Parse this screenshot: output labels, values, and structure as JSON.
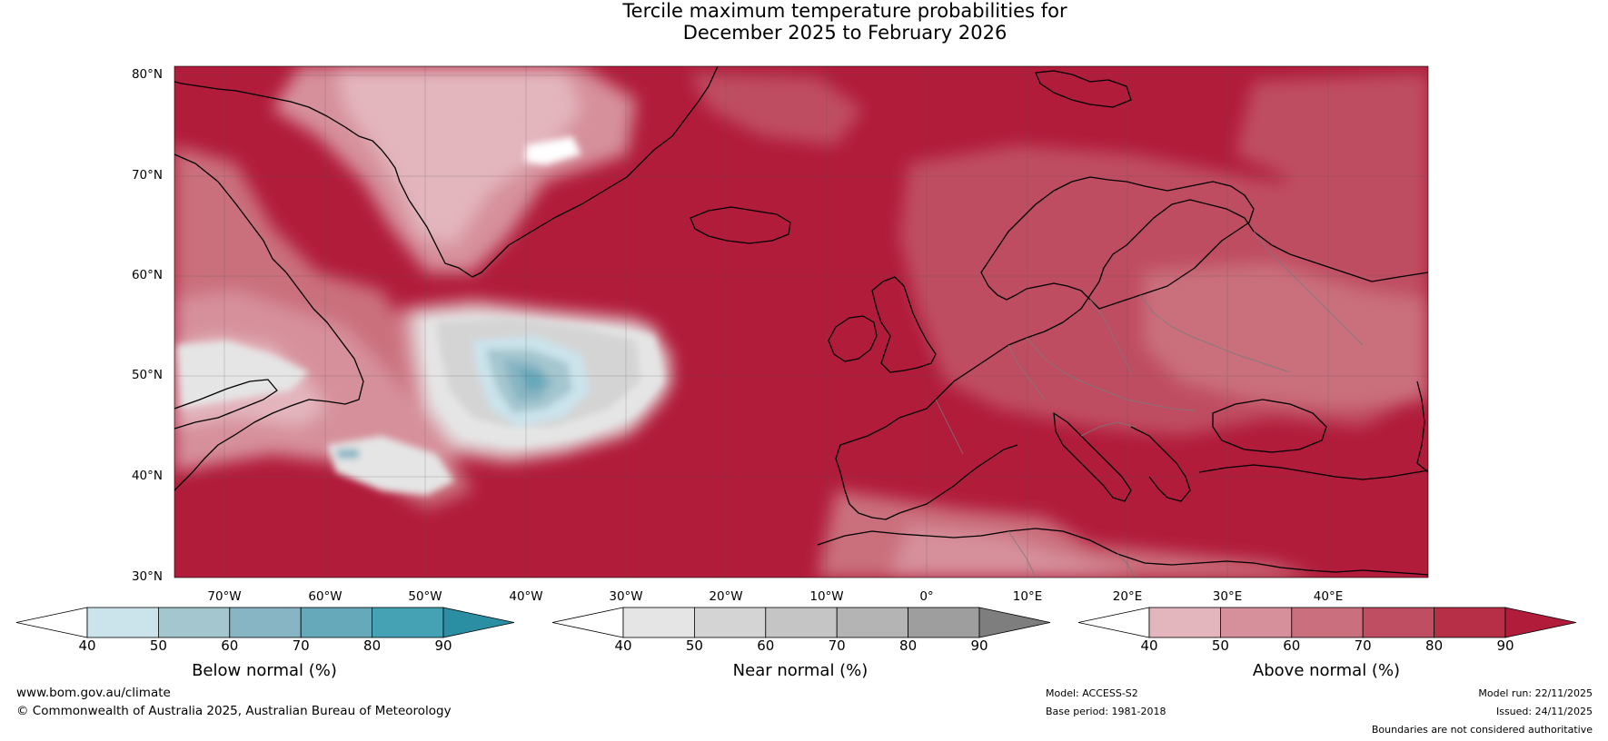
{
  "title_line1": "Tercile maximum temperature probabilities for",
  "title_line2": "December 2025 to February 2026",
  "map": {
    "lat_labels": [
      "80°N",
      "70°N",
      "60°N",
      "50°N",
      "40°N",
      "30°N"
    ],
    "lon_labels": [
      "70°W",
      "60°W",
      "50°W",
      "40°W",
      "30°W",
      "20°W",
      "10°W",
      "0°",
      "10°E",
      "20°E",
      "30°E",
      "40°E"
    ],
    "extent": {
      "lon_min": -75,
      "lon_max": 50,
      "lat_min": 30,
      "lat_max": 81
    }
  },
  "colorbars": [
    {
      "label": "Below normal (%)",
      "ticks": [
        "40",
        "50",
        "60",
        "70",
        "80",
        "90"
      ],
      "colors": [
        "#ffffff",
        "#cbe3eb",
        "#a4c6cf",
        "#87b5c3",
        "#66a9ba",
        "#45a1b4",
        "#2b8ea3"
      ]
    },
    {
      "label": "Near normal (%)",
      "ticks": [
        "40",
        "50",
        "60",
        "70",
        "80",
        "90"
      ],
      "colors": [
        "#ffffff",
        "#e5e5e5",
        "#d4d4d4",
        "#c5c5c5",
        "#b4b4b4",
        "#9e9e9e",
        "#7e7e7e"
      ]
    },
    {
      "label": "Above normal (%)",
      "ticks": [
        "40",
        "50",
        "60",
        "70",
        "80",
        "90"
      ],
      "colors": [
        "#ffffff",
        "#e3b5bd",
        "#d6909b",
        "#ca6f7d",
        "#bf4e62",
        "#b72f47",
        "#b11c3b"
      ]
    }
  ],
  "footer": {
    "url": "www.bom.gov.au/climate",
    "copyright": "© Commonwealth of Australia 2025, Australian Bureau of Meteorology",
    "model": "Model: ACCESS-S2",
    "base_period": "Base period: 1981-2018",
    "model_run": "Model run: 22/11/2025",
    "issued": "Issued: 24/11/2025",
    "disclaimer": "Boundaries are not considered authoritative"
  }
}
